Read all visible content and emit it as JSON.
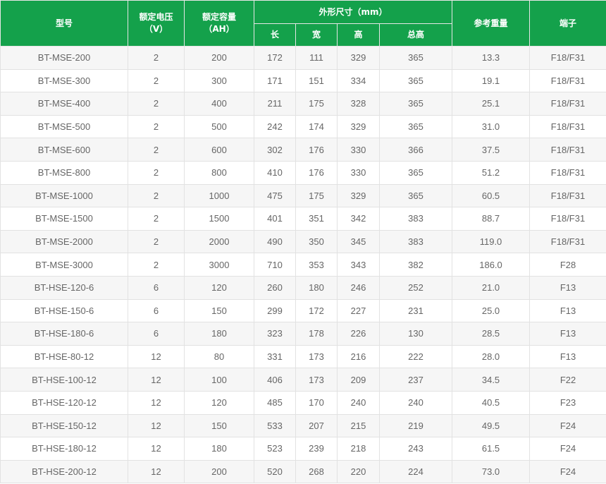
{
  "header": {
    "model": "型号",
    "voltage": "额定电压",
    "voltage_unit": "（V）",
    "capacity": "额定容量",
    "capacity_unit": "（AH）",
    "dimensions": "外形尺寸（mm）",
    "length": "长",
    "width": "宽",
    "height": "高",
    "total_height": "总高",
    "weight": "参考重量",
    "terminal": "端子"
  },
  "rows": [
    [
      "BT-MSE-200",
      "2",
      "200",
      "172",
      "111",
      "329",
      "365",
      "13.3",
      "F18/F31"
    ],
    [
      "BT-MSE-300",
      "2",
      "300",
      "171",
      "151",
      "334",
      "365",
      "19.1",
      "F18/F31"
    ],
    [
      "BT-MSE-400",
      "2",
      "400",
      "211",
      "175",
      "328",
      "365",
      "25.1",
      "F18/F31"
    ],
    [
      "BT-MSE-500",
      "2",
      "500",
      "242",
      "174",
      "329",
      "365",
      "31.0",
      "F18/F31"
    ],
    [
      "BT-MSE-600",
      "2",
      "600",
      "302",
      "176",
      "330",
      "366",
      "37.5",
      "F18/F31"
    ],
    [
      "BT-MSE-800",
      "2",
      "800",
      "410",
      "176",
      "330",
      "365",
      "51.2",
      "F18/F31"
    ],
    [
      "BT-MSE-1000",
      "2",
      "1000",
      "475",
      "175",
      "329",
      "365",
      "60.5",
      "F18/F31"
    ],
    [
      "BT-MSE-1500",
      "2",
      "1500",
      "401",
      "351",
      "342",
      "383",
      "88.7",
      "F18/F31"
    ],
    [
      "BT-MSE-2000",
      "2",
      "2000",
      "490",
      "350",
      "345",
      "383",
      "119.0",
      "F18/F31"
    ],
    [
      "BT-MSE-3000",
      "2",
      "3000",
      "710",
      "353",
      "343",
      "382",
      "186.0",
      "F28"
    ],
    [
      "BT-HSE-120-6",
      "6",
      "120",
      "260",
      "180",
      "246",
      "252",
      "21.0",
      "F13"
    ],
    [
      "BT-HSE-150-6",
      "6",
      "150",
      "299",
      "172",
      "227",
      "231",
      "25.0",
      "F13"
    ],
    [
      "BT-HSE-180-6",
      "6",
      "180",
      "323",
      "178",
      "226",
      "130",
      "28.5",
      "F13"
    ],
    [
      "BT-HSE-80-12",
      "12",
      "80",
      "331",
      "173",
      "216",
      "222",
      "28.0",
      "F13"
    ],
    [
      "BT-HSE-100-12",
      "12",
      "100",
      "406",
      "173",
      "209",
      "237",
      "34.5",
      "F22"
    ],
    [
      "BT-HSE-120-12",
      "12",
      "120",
      "485",
      "170",
      "240",
      "240",
      "40.5",
      "F23"
    ],
    [
      "BT-HSE-150-12",
      "12",
      "150",
      "533",
      "207",
      "215",
      "219",
      "49.5",
      "F24"
    ],
    [
      "BT-HSE-180-12",
      "12",
      "180",
      "523",
      "239",
      "218",
      "243",
      "61.5",
      "F24"
    ],
    [
      "BT-HSE-200-12",
      "12",
      "200",
      "520",
      "268",
      "220",
      "224",
      "73.0",
      "F24"
    ]
  ]
}
